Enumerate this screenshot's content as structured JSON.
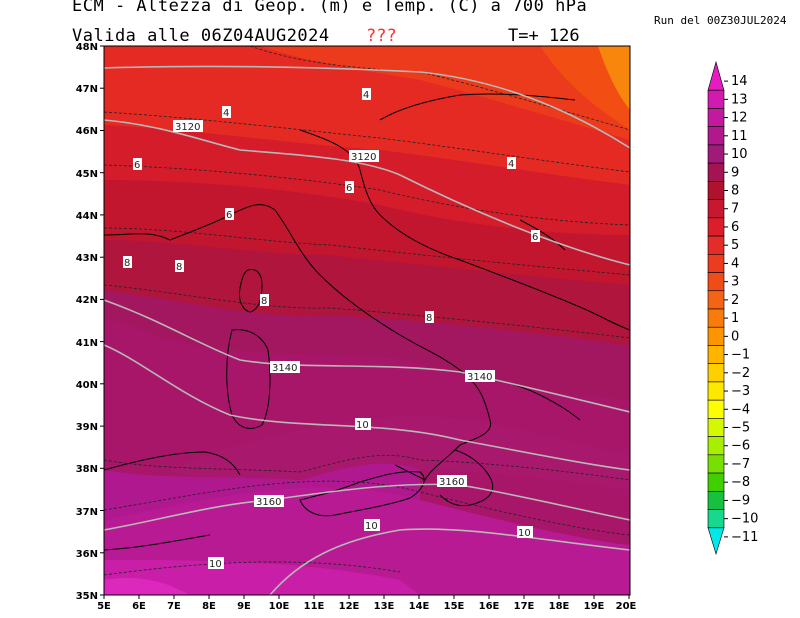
{
  "header": {
    "title": "ECM - Altezza di Geop. (m) e Temp. (C) a 700 hPa",
    "valid": "Valida alle 06Z04AUG2024",
    "qmark": "???",
    "forecast": "T=+ 126",
    "run": "Run del 00Z30JUL2024"
  },
  "map": {
    "lat_ticks": [
      "48N",
      "47N",
      "46N",
      "45N",
      "44N",
      "43N",
      "42N",
      "41N",
      "40N",
      "39N",
      "38N",
      "37N",
      "36N",
      "35N"
    ],
    "lon_ticks": [
      "5E",
      "6E",
      "7E",
      "8E",
      "9E",
      "10E",
      "11E",
      "12E",
      "13E",
      "14E",
      "15E",
      "16E",
      "17E",
      "18E",
      "19E",
      "20E"
    ],
    "geopotential_labels": [
      "3120",
      "3120",
      "3140",
      "3140",
      "3160",
      "3160"
    ],
    "temperature_labels": [
      "4",
      "4",
      "4",
      "6",
      "6",
      "6",
      "6",
      "8",
      "8",
      "8",
      "8",
      "10",
      "10",
      "10",
      "10"
    ]
  },
  "colorbar": {
    "levels": [
      14,
      13,
      12,
      11,
      10,
      9,
      8,
      7,
      6,
      5,
      4,
      3,
      2,
      1,
      0,
      -1,
      -2,
      -3,
      -4,
      -5,
      -6,
      -7,
      -8,
      -9,
      -10,
      -11
    ],
    "labels": [
      "14",
      "13",
      "12",
      "11",
      "10",
      "9",
      "8",
      "7",
      "6",
      "5",
      "4",
      "3",
      "2",
      "1",
      "0",
      "−1",
      "−2",
      "−3",
      "−4",
      "−5",
      "−6",
      "−7",
      "−8",
      "−9",
      "−10",
      "−11"
    ],
    "colors": [
      "#e61cc0",
      "#d21ab0",
      "#c21a9e",
      "#b0188c",
      "#a01a78",
      "#a41452",
      "#b0122e",
      "#c81830",
      "#dc1e2c",
      "#e42c28",
      "#ec3c20",
      "#f04c18",
      "#f46414",
      "#f87c0c",
      "#fc9404",
      "#ffb400",
      "#ffd000",
      "#ffe800",
      "#fcff00",
      "#d4f800",
      "#a8ee00",
      "#78e000",
      "#40d000",
      "#18c040",
      "#18d890",
      "#00e8e8"
    ]
  },
  "colors": {
    "geopotential_line": "#b8b8b8",
    "temperature_line": "#222222",
    "coastline": "#000000",
    "qmark": "#ff3030"
  }
}
